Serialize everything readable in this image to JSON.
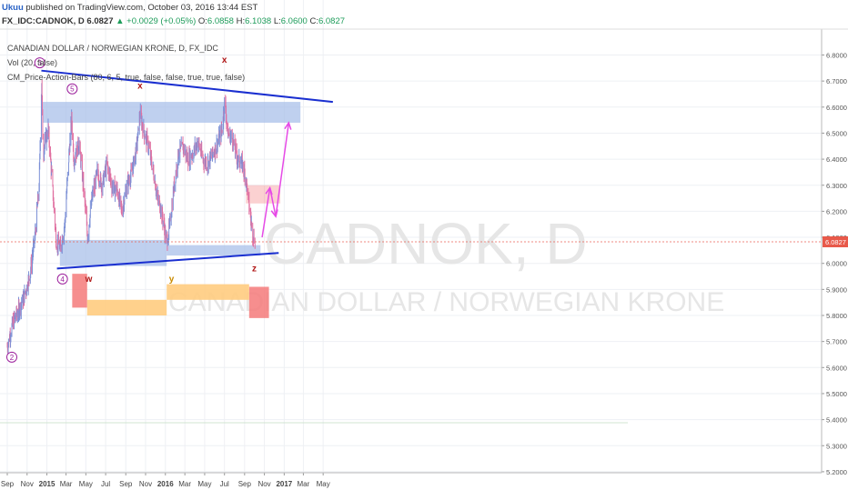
{
  "header": {
    "author": "Ukuu",
    "published_text": "published on TradingView.com, October 03, 2016 13:44 EST",
    "symbol_line": "FX_IDC:CADNOK, D",
    "last": "6.0827",
    "change": "+0.0029 (+0.05%)",
    "open_label": "O:",
    "open": "6.0858",
    "high_label": "H:",
    "high": "6.1038",
    "low_label": "L:",
    "low": "6.0600",
    "close_label": "C:",
    "close": "6.0827"
  },
  "legend": {
    "title": "CANADIAN DOLLAR / NORWEGIAN KRONE, D, FX_IDC",
    "vol": "Vol (20, false)",
    "indicator": "CM_Price-Action-Bars (80, 6, 5, true, false, false, true, true, false)"
  },
  "watermark": {
    "symbol": "CADNOK, D",
    "name": "CANADIAN DOLLAR / NORWEGIAN KRONE"
  },
  "annotations": {
    "wave_labels": [
      "3",
      "5",
      "4",
      "2"
    ],
    "letters": {
      "x1": "x",
      "x2": "x",
      "w": "w",
      "y": "y",
      "z": "z"
    }
  },
  "colors": {
    "bull_bar": "#7b8fd6",
    "bear_bar": "#e06fa0",
    "trendline": "#1a2fd0",
    "blue_zone": "#a9c0ea",
    "red_zone": "#f47a7a",
    "orange_zone": "#ffcc80",
    "projection": "#e64ae6",
    "wave_label": "#9b1d9b",
    "letter": "#b01515",
    "last_price": "#e8594a"
  },
  "chart_data": {
    "type": "line",
    "title": "CANADIAN DOLLAR / NORWEGIAN KRONE, D, FX_IDC",
    "xlabel": "",
    "ylabel": "",
    "ylim": [
      5.1,
      6.85
    ],
    "grid": true,
    "y_ticks": [
      "6.8000",
      "6.7000",
      "6.6000",
      "6.5000",
      "6.4000",
      "6.3000",
      "6.2000",
      "6.1000",
      "6.0000",
      "5.9000",
      "5.8000",
      "5.7000",
      "5.6000",
      "5.5000",
      "5.4000",
      "5.3000",
      "5.2000"
    ],
    "x_ticks": [
      "Sep",
      "Nov",
      "2015",
      "Mar",
      "May",
      "Jul",
      "Sep",
      "Nov",
      "2016",
      "Mar",
      "May",
      "Jul",
      "Sep",
      "Nov",
      "2017",
      "Mar",
      "May"
    ],
    "last_price_label": "6.0827",
    "series": [
      {
        "values_approx_close": [
          {
            "date": "2014-09-01",
            "value": 5.68
          },
          {
            "date": "2014-09-20",
            "value": 5.78
          },
          {
            "date": "2014-10-10",
            "value": 5.83
          },
          {
            "date": "2014-10-25",
            "value": 5.88
          },
          {
            "date": "2014-11-10",
            "value": 5.96
          },
          {
            "date": "2014-11-25",
            "value": 6.1
          },
          {
            "date": "2014-12-08",
            "value": 6.3
          },
          {
            "date": "2014-12-16",
            "value": 6.7
          },
          {
            "date": "2014-12-20",
            "value": 6.42
          },
          {
            "date": "2015-01-05",
            "value": 6.52
          },
          {
            "date": "2015-01-18",
            "value": 6.3
          },
          {
            "date": "2015-01-30",
            "value": 6.08
          },
          {
            "date": "2015-02-12",
            "value": 6.06
          },
          {
            "date": "2015-02-25",
            "value": 6.15
          },
          {
            "date": "2015-03-10",
            "value": 6.42
          },
          {
            "date": "2015-03-18",
            "value": 6.55
          },
          {
            "date": "2015-03-25",
            "value": 6.4
          },
          {
            "date": "2015-04-10",
            "value": 6.46
          },
          {
            "date": "2015-04-25",
            "value": 6.28
          },
          {
            "date": "2015-05-06",
            "value": 6.1
          },
          {
            "date": "2015-05-20",
            "value": 6.25
          },
          {
            "date": "2015-06-05",
            "value": 6.35
          },
          {
            "date": "2015-06-20",
            "value": 6.3
          },
          {
            "date": "2015-07-05",
            "value": 6.38
          },
          {
            "date": "2015-07-20",
            "value": 6.3
          },
          {
            "date": "2015-08-05",
            "value": 6.28
          },
          {
            "date": "2015-08-20",
            "value": 6.2
          },
          {
            "date": "2015-09-05",
            "value": 6.3
          },
          {
            "date": "2015-09-20",
            "value": 6.35
          },
          {
            "date": "2015-10-05",
            "value": 6.45
          },
          {
            "date": "2015-10-15",
            "value": 6.57
          },
          {
            "date": "2015-10-28",
            "value": 6.5
          },
          {
            "date": "2015-11-10",
            "value": 6.45
          },
          {
            "date": "2015-11-25",
            "value": 6.35
          },
          {
            "date": "2015-12-08",
            "value": 6.25
          },
          {
            "date": "2015-12-20",
            "value": 6.2
          },
          {
            "date": "2016-01-05",
            "value": 6.08
          },
          {
            "date": "2016-01-15",
            "value": 6.15
          },
          {
            "date": "2016-01-28",
            "value": 6.3
          },
          {
            "date": "2016-02-10",
            "value": 6.42
          },
          {
            "date": "2016-02-25",
            "value": 6.45
          },
          {
            "date": "2016-03-10",
            "value": 6.4
          },
          {
            "date": "2016-03-25",
            "value": 6.42
          },
          {
            "date": "2016-04-10",
            "value": 6.47
          },
          {
            "date": "2016-04-25",
            "value": 6.4
          },
          {
            "date": "2016-05-10",
            "value": 6.38
          },
          {
            "date": "2016-05-25",
            "value": 6.42
          },
          {
            "date": "2016-06-10",
            "value": 6.46
          },
          {
            "date": "2016-06-25",
            "value": 6.52
          },
          {
            "date": "2016-07-02",
            "value": 6.64
          },
          {
            "date": "2016-07-10",
            "value": 6.5
          },
          {
            "date": "2016-07-25",
            "value": 6.48
          },
          {
            "date": "2016-08-10",
            "value": 6.4
          },
          {
            "date": "2016-08-25",
            "value": 6.38
          },
          {
            "date": "2016-09-05",
            "value": 6.33
          },
          {
            "date": "2016-09-15",
            "value": 6.22
          },
          {
            "date": "2016-09-25",
            "value": 6.12
          },
          {
            "date": "2016-10-03",
            "value": 6.0827
          }
        ]
      }
    ],
    "zones": {
      "blue_resistance": [
        {
          "from": "2014-12-18",
          "to": "2017-02-20",
          "low": 6.54,
          "high": 6.62
        }
      ],
      "blue_support": [
        {
          "from": "2015-02-10",
          "to": "2016-01-05",
          "low": 5.99,
          "high": 6.09
        },
        {
          "from": "2016-01-05",
          "to": "2016-10-20",
          "low": 6.03,
          "high": 6.07
        }
      ],
      "red_target": [
        {
          "from": "2016-09-05",
          "to": "2016-12-20",
          "low": 6.23,
          "high": 6.3
        }
      ],
      "red_blocks": [
        {
          "from": "2015-03-20",
          "to": "2015-05-05",
          "low": 5.83,
          "high": 5.96
        },
        {
          "from": "2016-09-15",
          "to": "2016-11-15",
          "low": 5.79,
          "high": 5.91
        }
      ],
      "orange_bars": [
        {
          "from": "2015-05-05",
          "to": "2016-01-05",
          "low": 5.8,
          "high": 5.86
        },
        {
          "from": "2016-01-05",
          "to": "2016-09-15",
          "low": 5.86,
          "high": 5.92
        }
      ]
    },
    "trendlines": [
      {
        "name": "upper",
        "from": {
          "date": "2014-12-15",
          "value": 6.74
        },
        "to": {
          "date": "2017-05-31",
          "value": 6.62
        }
      },
      {
        "name": "lower",
        "from": {
          "date": "2015-02-01",
          "value": 5.98
        },
        "to": {
          "date": "2016-12-15",
          "value": 6.04
        }
      }
    ],
    "projection_path": [
      {
        "date": "2016-10-25",
        "value": 6.1
      },
      {
        "date": "2016-11-18",
        "value": 6.29
      },
      {
        "date": "2016-12-06",
        "value": 6.18
      },
      {
        "date": "2017-01-15",
        "value": 6.54
      }
    ],
    "annotation_points": {
      "wave_3": {
        "date": "2014-12-10",
        "value": 6.77
      },
      "wave_5": {
        "date": "2015-03-20",
        "value": 6.67
      },
      "wave_4": {
        "date": "2015-02-18",
        "value": 5.94
      },
      "wave_2": {
        "date": "2014-09-15",
        "value": 5.64
      },
      "x1": {
        "date": "2015-10-15",
        "value": 6.67
      },
      "x2": {
        "date": "2016-07-01",
        "value": 6.77
      },
      "w": {
        "date": "2015-05-10",
        "value": 5.93
      },
      "y": {
        "date": "2016-01-20",
        "value": 5.93
      },
      "z": {
        "date": "2016-10-01",
        "value": 5.97
      }
    }
  }
}
